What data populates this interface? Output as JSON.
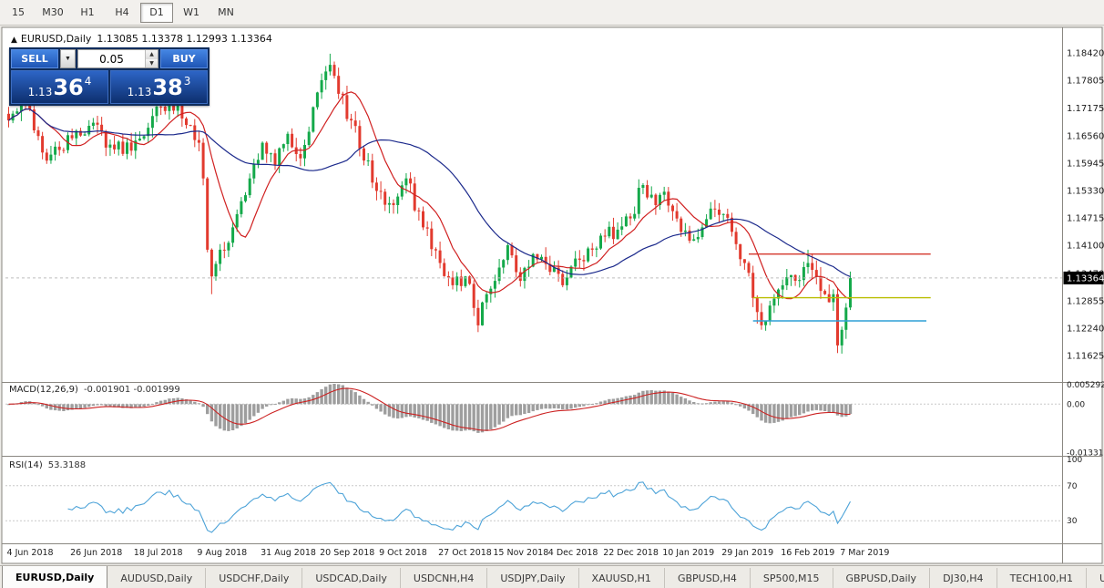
{
  "toolbar": {
    "timeframes": [
      {
        "label": "15",
        "active": false
      },
      {
        "label": "M30",
        "active": false
      },
      {
        "label": "H1",
        "active": false
      },
      {
        "label": "H4",
        "active": false
      },
      {
        "label": "D1",
        "active": true
      },
      {
        "label": "W1",
        "active": false
      },
      {
        "label": "MN",
        "active": false
      }
    ]
  },
  "chart": {
    "title": {
      "arrow": "▲",
      "symbol": "EURUSD,Daily",
      "ohlc": "1.13085 1.13378 1.12993 1.13364"
    }
  },
  "trade_panel": {
    "sell_label": "SELL",
    "buy_label": "BUY",
    "lot_value": "0.05",
    "sell_price": {
      "prefix": "1.13",
      "big": "36",
      "sup": "4"
    },
    "buy_price": {
      "prefix": "1.13",
      "big": "38",
      "sup": "3"
    }
  },
  "icons": {
    "chevron_down": "▼",
    "spinner_up": "▲",
    "spinner_down": "▼"
  },
  "chart_data": {
    "type": "candlestick",
    "symbol": "EURUSD",
    "timeframe": "Daily",
    "candle_count": 200,
    "price_path": [
      [
        0,
        1.169
      ],
      [
        4,
        1.1735
      ],
      [
        9,
        1.16
      ],
      [
        15,
        1.165
      ],
      [
        20,
        1.1685
      ],
      [
        25,
        1.1625
      ],
      [
        30,
        1.1645
      ],
      [
        34,
        1.17
      ],
      [
        38,
        1.174
      ],
      [
        42,
        1.168
      ],
      [
        45,
        1.164
      ],
      [
        46,
        1.156
      ],
      [
        47,
        1.14
      ],
      [
        48,
        1.134
      ],
      [
        50,
        1.14
      ],
      [
        53,
        1.145
      ],
      [
        57,
        1.156
      ],
      [
        60,
        1.164
      ],
      [
        63,
        1.159
      ],
      [
        66,
        1.166
      ],
      [
        69,
        1.1605
      ],
      [
        72,
        1.172
      ],
      [
        75,
        1.18
      ],
      [
        76,
        1.1815
      ],
      [
        78,
        1.175
      ],
      [
        81,
        1.169
      ],
      [
        84,
        1.16
      ],
      [
        88,
        1.153
      ],
      [
        91,
        1.15
      ],
      [
        94,
        1.156
      ],
      [
        98,
        1.145
      ],
      [
        102,
        1.137
      ],
      [
        105,
        1.132
      ],
      [
        108,
        1.134
      ],
      [
        111,
        1.123
      ],
      [
        113,
        1.13
      ],
      [
        115,
        1.133
      ],
      [
        118,
        1.141
      ],
      [
        121,
        1.133
      ],
      [
        124,
        1.139
      ],
      [
        128,
        1.135
      ],
      [
        131,
        1.132
      ],
      [
        134,
        1.138
      ],
      [
        138,
        1.14
      ],
      [
        141,
        1.143
      ],
      [
        144,
        1.1445
      ],
      [
        147,
        1.147
      ],
      [
        150,
        1.1545
      ],
      [
        153,
        1.15
      ],
      [
        155,
        1.153
      ],
      [
        158,
        1.147
      ],
      [
        161,
        1.142
      ],
      [
        164,
        1.145
      ],
      [
        167,
        1.149
      ],
      [
        169,
        1.148
      ],
      [
        171,
        1.144
      ],
      [
        174,
        1.137
      ],
      [
        177,
        1.126
      ],
      [
        179,
        1.124
      ],
      [
        181,
        1.129
      ],
      [
        183,
        1.132
      ],
      [
        186,
        1.133
      ],
      [
        189,
        1.137
      ],
      [
        191,
        1.134
      ],
      [
        193,
        1.13
      ],
      [
        195,
        1.13
      ],
      [
        196,
        1.1185
      ],
      [
        197,
        1.122
      ],
      [
        198,
        1.127
      ],
      [
        199,
        1.13364
      ]
    ],
    "special_highs": [
      [
        76,
        1.184
      ],
      [
        38,
        1.175
      ],
      [
        189,
        1.14
      ]
    ],
    "special_lows": [
      [
        48,
        1.13
      ],
      [
        111,
        1.1216
      ],
      [
        177,
        1.1234
      ],
      [
        196,
        1.1176
      ]
    ],
    "current_price": "1.13364",
    "price_scale_labels": [
      "1.18420",
      "1.17805",
      "1.17175",
      "1.16560",
      "1.15945",
      "1.15330",
      "1.14715",
      "1.14100",
      "1.13470",
      "1.12855",
      "1.12240",
      "1.11625"
    ],
    "hlines": [
      {
        "name": "resistance-line-red",
        "color": "#d4372c",
        "price": 1.139,
        "from": 175,
        "to": 218
      },
      {
        "name": "support-line-yellow",
        "color": "#b9bd00",
        "price": 1.1292,
        "from": 176,
        "to": 218
      },
      {
        "name": "support-line-blue",
        "color": "#2f9fd6",
        "price": 1.124,
        "from": 176,
        "to": 217
      }
    ],
    "moving_averages": [
      {
        "period": 10,
        "color": "#d02020"
      },
      {
        "period": 34,
        "color": "#1c2a8c"
      }
    ],
    "x_axis": {
      "labels": [
        "4 Jun 2018",
        "26 Jun 2018",
        "18 Jul 2018",
        "9 Aug 2018",
        "31 Aug 2018",
        "20 Sep 2018",
        "9 Oct 2018",
        "27 Oct 2018",
        "15 Nov 2018",
        "4 Dec 2018",
        "22 Dec 2018",
        "10 Jan 2019",
        "29 Jan 2019",
        "16 Feb 2019",
        "7 Mar 2019"
      ],
      "indices": [
        0,
        15,
        30,
        45,
        60,
        74,
        88,
        102,
        115,
        128,
        141,
        155,
        169,
        183,
        197
      ]
    },
    "indicators": {
      "macd": {
        "title": "MACD(12,26,9)",
        "values_text": "-0.001901 -0.001999",
        "params": [
          12,
          26,
          9
        ],
        "scale_labels": [
          "0.005292",
          "0.00",
          "-0.01331"
        ]
      },
      "rsi": {
        "title": "RSI(14)",
        "value_text": "53.3188",
        "period": 14,
        "levels": [
          100,
          70,
          30
        ]
      }
    },
    "colors": {
      "up": "#14a94a",
      "down": "#e23a2e",
      "histogram": "#9e9e9e",
      "macd_signal": "#cc2222",
      "rsi": "#4da3d8",
      "current_price_badge": "#000000"
    }
  },
  "tabs": [
    {
      "label": "EURUSD,Daily",
      "active": true
    },
    {
      "label": "AUDUSD,Daily",
      "active": false
    },
    {
      "label": "USDCHF,Daily",
      "active": false
    },
    {
      "label": "USDCAD,Daily",
      "active": false
    },
    {
      "label": "USDCNH,H4",
      "active": false
    },
    {
      "label": "USDJPY,Daily",
      "active": false
    },
    {
      "label": "XAUUSD,H1",
      "active": false
    },
    {
      "label": "GBPUSD,H4",
      "active": false
    },
    {
      "label": "SP500,M15",
      "active": false
    },
    {
      "label": "GBPUSD,Daily",
      "active": false
    },
    {
      "label": "DJ30,H4",
      "active": false
    },
    {
      "label": "TECH100,H1",
      "active": false
    },
    {
      "label": "UKC",
      "active": false
    }
  ]
}
